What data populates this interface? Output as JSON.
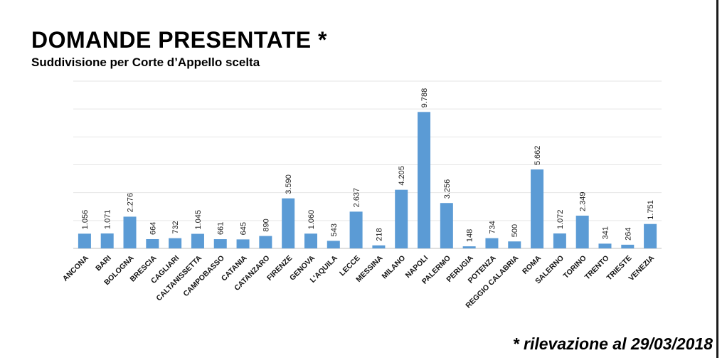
{
  "title": "DOMANDE PRESENTATE *",
  "subtitle": "Suddivisione per Corte d’Appello scelta",
  "footnote": "* rilevazione al 29/03/2018",
  "colors": {
    "bar": "#5b9bd5",
    "grid": "#e6e6e6"
  },
  "chart_data": {
    "type": "bar",
    "title": "DOMANDE PRESENTATE *",
    "subtitle": "Suddivisione per Corte d’Appello scelta",
    "xlabel": "",
    "ylabel": "",
    "ylim": [
      0,
      12000
    ],
    "grid": true,
    "legend": "none",
    "categories": [
      "ANCONA",
      "BARI",
      "BOLOGNA",
      "BRESCIA",
      "CAGLIARI",
      "CALTANISSETTA",
      "CAMPOBASSO",
      "CATANIA",
      "CATANZARO",
      "FIRENZE",
      "GENOVA",
      "L'AQUILA",
      "LECCE",
      "MESSINA",
      "MILANO",
      "NAPOLI",
      "PALERMO",
      "PERUGIA",
      "POTENZA",
      "REGGIO CALABRIA",
      "ROMA",
      "SALERNO",
      "TORINO",
      "TRENTO",
      "TRIESTE",
      "VENEZIA"
    ],
    "values": [
      1056,
      1071,
      2276,
      664,
      732,
      1045,
      661,
      645,
      890,
      3590,
      1060,
      543,
      2637,
      218,
      4205,
      9788,
      3256,
      148,
      734,
      500,
      5662,
      1072,
      2349,
      341,
      264,
      1751
    ],
    "value_labels": [
      "1.056",
      "1.071",
      "2.276",
      "664",
      "732",
      "1.045",
      "661",
      "645",
      "890",
      "3.590",
      "1.060",
      "543",
      "2.637",
      "218",
      "4.205",
      "9.788",
      "3.256",
      "148",
      "734",
      "500",
      "5.662",
      "1.072",
      "2.349",
      "341",
      "264",
      "1.751"
    ]
  }
}
